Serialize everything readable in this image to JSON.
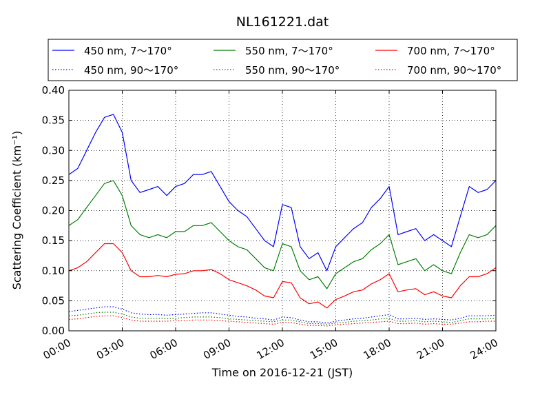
{
  "chart_data": {
    "type": "line",
    "title": "NL161221.dat",
    "xlabel": "Time on 2016-12-21 (JST)",
    "ylabel": "Scattering Coefficient (km⁻¹)",
    "xlim": [
      0,
      24
    ],
    "ylim": [
      0.0,
      0.4
    ],
    "xticks": [
      0,
      3,
      6,
      9,
      12,
      15,
      18,
      21,
      24
    ],
    "xtick_labels": [
      "00:00",
      "03:00",
      "06:00",
      "09:00",
      "12:00",
      "15:00",
      "18:00",
      "21:00",
      "24:00"
    ],
    "yticks": [
      0.0,
      0.05,
      0.1,
      0.15,
      0.2,
      0.25,
      0.3,
      0.35,
      0.4
    ],
    "ytick_labels": [
      "0.00",
      "0.05",
      "0.10",
      "0.15",
      "0.20",
      "0.25",
      "0.30",
      "0.35",
      "0.40"
    ],
    "grid": true,
    "legend_position": "top",
    "x": [
      0,
      0.5,
      1,
      1.5,
      2,
      2.5,
      3,
      3.5,
      4,
      4.5,
      5,
      5.5,
      6,
      6.5,
      7,
      7.5,
      8,
      8.5,
      9,
      9.5,
      10,
      10.5,
      11,
      11.5,
      12,
      12.5,
      13,
      13.5,
      14,
      14.5,
      15,
      15.5,
      16,
      16.5,
      17,
      17.5,
      18,
      18.5,
      19,
      19.5,
      20,
      20.5,
      21,
      21.5,
      22,
      22.5,
      23,
      23.5,
      24
    ],
    "series": [
      {
        "name": "450 nm, 7～170°",
        "color": "#0000ff",
        "style": "solid",
        "values": [
          0.26,
          0.27,
          0.3,
          0.33,
          0.355,
          0.36,
          0.33,
          0.25,
          0.23,
          0.235,
          0.24,
          0.225,
          0.24,
          0.245,
          0.26,
          0.26,
          0.265,
          0.24,
          0.215,
          0.2,
          0.19,
          0.17,
          0.15,
          0.14,
          0.21,
          0.205,
          0.14,
          0.12,
          0.13,
          0.1,
          0.14,
          0.155,
          0.17,
          0.18,
          0.205,
          0.22,
          0.24,
          0.16,
          0.165,
          0.17,
          0.15,
          0.16,
          0.15,
          0.14,
          0.19,
          0.24,
          0.23,
          0.235,
          0.25
        ]
      },
      {
        "name": "450 nm, 90～170°",
        "color": "#0000ff",
        "style": "dotted",
        "values": [
          0.032,
          0.034,
          0.036,
          0.038,
          0.04,
          0.04,
          0.036,
          0.03,
          0.028,
          0.027,
          0.027,
          0.026,
          0.027,
          0.028,
          0.029,
          0.03,
          0.03,
          0.028,
          0.026,
          0.024,
          0.023,
          0.021,
          0.02,
          0.018,
          0.023,
          0.022,
          0.018,
          0.015,
          0.015,
          0.013,
          0.016,
          0.018,
          0.02,
          0.021,
          0.023,
          0.025,
          0.027,
          0.02,
          0.02,
          0.021,
          0.019,
          0.02,
          0.019,
          0.018,
          0.021,
          0.025,
          0.025,
          0.025,
          0.026
        ]
      },
      {
        "name": "550 nm, 7～170°",
        "color": "#008000",
        "style": "solid",
        "values": [
          0.175,
          0.185,
          0.205,
          0.225,
          0.245,
          0.25,
          0.225,
          0.175,
          0.16,
          0.155,
          0.16,
          0.155,
          0.165,
          0.165,
          0.175,
          0.175,
          0.18,
          0.165,
          0.15,
          0.14,
          0.135,
          0.12,
          0.105,
          0.1,
          0.145,
          0.14,
          0.1,
          0.085,
          0.09,
          0.07,
          0.095,
          0.105,
          0.115,
          0.12,
          0.135,
          0.145,
          0.16,
          0.11,
          0.115,
          0.12,
          0.1,
          0.11,
          0.1,
          0.095,
          0.13,
          0.16,
          0.155,
          0.16,
          0.175
        ]
      },
      {
        "name": "550 nm, 90～170°",
        "color": "#008000",
        "style": "dotted",
        "values": [
          0.025,
          0.026,
          0.028,
          0.03,
          0.031,
          0.031,
          0.028,
          0.023,
          0.021,
          0.021,
          0.021,
          0.02,
          0.021,
          0.022,
          0.023,
          0.023,
          0.023,
          0.022,
          0.02,
          0.019,
          0.018,
          0.017,
          0.016,
          0.015,
          0.018,
          0.018,
          0.015,
          0.012,
          0.012,
          0.011,
          0.013,
          0.014,
          0.016,
          0.017,
          0.018,
          0.02,
          0.021,
          0.016,
          0.016,
          0.017,
          0.015,
          0.016,
          0.015,
          0.014,
          0.017,
          0.02,
          0.02,
          0.02,
          0.021
        ]
      },
      {
        "name": "700 nm, 7～170°",
        "color": "#ff0000",
        "style": "solid",
        "values": [
          0.1,
          0.105,
          0.115,
          0.13,
          0.145,
          0.145,
          0.13,
          0.1,
          0.09,
          0.09,
          0.092,
          0.09,
          0.094,
          0.095,
          0.1,
          0.1,
          0.102,
          0.095,
          0.085,
          0.08,
          0.075,
          0.068,
          0.058,
          0.055,
          0.082,
          0.08,
          0.055,
          0.045,
          0.048,
          0.038,
          0.052,
          0.058,
          0.065,
          0.068,
          0.078,
          0.085,
          0.095,
          0.065,
          0.068,
          0.07,
          0.06,
          0.065,
          0.058,
          0.055,
          0.075,
          0.09,
          0.09,
          0.095,
          0.105
        ]
      },
      {
        "name": "700 nm, 90～170°",
        "color": "#ff0000",
        "style": "dotted",
        "values": [
          0.019,
          0.02,
          0.022,
          0.024,
          0.025,
          0.025,
          0.022,
          0.018,
          0.016,
          0.016,
          0.016,
          0.016,
          0.017,
          0.017,
          0.018,
          0.018,
          0.018,
          0.017,
          0.016,
          0.015,
          0.014,
          0.013,
          0.012,
          0.011,
          0.014,
          0.014,
          0.011,
          0.009,
          0.009,
          0.008,
          0.01,
          0.011,
          0.012,
          0.013,
          0.014,
          0.015,
          0.016,
          0.012,
          0.012,
          0.013,
          0.011,
          0.012,
          0.011,
          0.011,
          0.013,
          0.015,
          0.015,
          0.016,
          0.016
        ]
      }
    ]
  }
}
